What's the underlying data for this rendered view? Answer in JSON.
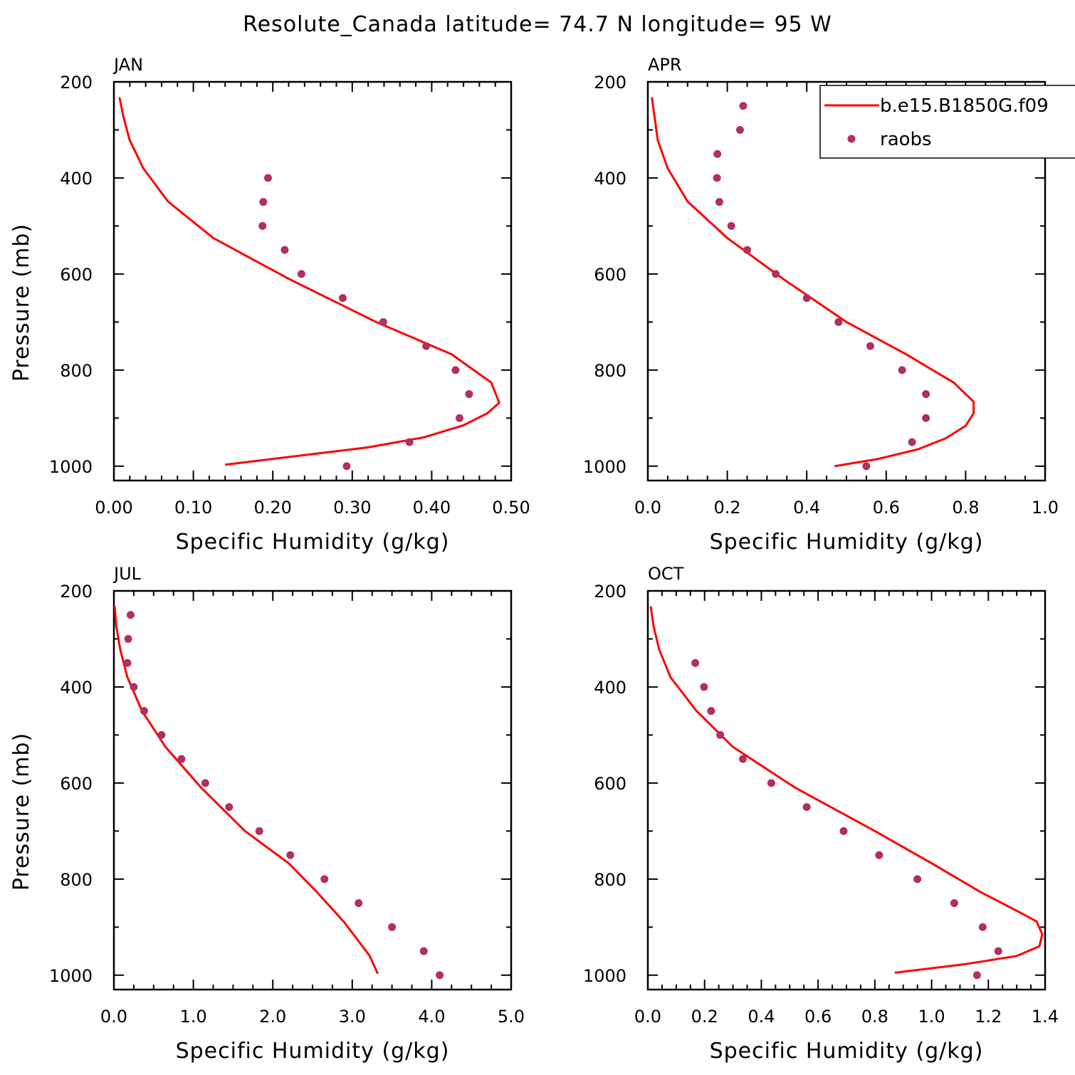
{
  "title": "Resolute_Canada  latitude= 74.7 N longitude= 95 W",
  "colors": {
    "model": "#ff0000",
    "raobs": "#b03060"
  },
  "legend": {
    "model": "b.e15.B1850G.f09",
    "raobs": "raobs"
  },
  "chart_data": [
    {
      "type": "line",
      "panel": "JAN",
      "xlabel": "Specific Humidity (g/kg)",
      "ylabel": "Pressure (mb)",
      "xlim": [
        0,
        0.5
      ],
      "ylim": [
        200,
        1030
      ],
      "xticks": [
        0,
        0.1,
        0.2,
        0.3,
        0.4,
        0.5
      ],
      "xtick_labels": [
        "0.00",
        "0.10",
        "0.20",
        "0.30",
        "0.40",
        "0.50"
      ],
      "xminor": [
        0.02,
        0.04,
        0.06,
        0.08,
        0.12,
        0.14,
        0.16,
        0.18,
        0.22,
        0.24,
        0.26,
        0.28,
        0.32,
        0.34,
        0.36,
        0.38,
        0.42,
        0.44,
        0.46,
        0.48
      ],
      "yticks": [
        200,
        400,
        600,
        800,
        1000
      ],
      "yminor": [
        300,
        500,
        700,
        900
      ],
      "series": [
        {
          "name": "b.e15.B1850G.f09",
          "kind": "line",
          "x": [
            0.14,
            0.32,
            0.39,
            0.44,
            0.47,
            0.485,
            0.475,
            0.425,
            0.33,
            0.22,
            0.125,
            0.068,
            0.037,
            0.02,
            0.012,
            0.007
          ],
          "y": [
            997,
            961,
            940,
            915,
            890,
            868,
            826,
            767,
            700,
            610,
            525,
            449,
            380,
            322,
            273,
            232
          ]
        },
        {
          "name": "raobs",
          "kind": "scatter",
          "x": [
            0.293,
            0.372,
            0.435,
            0.447,
            0.43,
            0.393,
            0.339,
            0.288,
            0.236,
            0.215,
            0.187,
            0.188,
            0.194
          ],
          "y": [
            1000,
            950,
            900,
            850,
            800,
            750,
            700,
            650,
            600,
            550,
            500,
            450,
            400
          ]
        }
      ]
    },
    {
      "type": "line",
      "panel": "APR",
      "xlabel": "Specific Humidity (g/kg)",
      "ylabel": "",
      "xlim": [
        0,
        1
      ],
      "ylim": [
        200,
        1030
      ],
      "xticks": [
        0,
        0.2,
        0.4,
        0.6,
        0.8,
        1.0
      ],
      "xtick_labels": [
        "0.0",
        "0.2",
        "0.4",
        "0.6",
        "0.8",
        "1.0"
      ],
      "xminor": [
        0.05,
        0.1,
        0.15,
        0.25,
        0.3,
        0.35,
        0.45,
        0.5,
        0.55,
        0.65,
        0.7,
        0.75,
        0.85,
        0.9,
        0.95
      ],
      "yticks": [
        200,
        400,
        600,
        800,
        1000
      ],
      "yminor": [
        300,
        500,
        700,
        900
      ],
      "series": [
        {
          "name": "b.e15.B1850G.f09",
          "kind": "line",
          "x": [
            0.47,
            0.58,
            0.68,
            0.75,
            0.8,
            0.82,
            0.82,
            0.77,
            0.65,
            0.5,
            0.34,
            0.2,
            0.1,
            0.05,
            0.025,
            0.01
          ],
          "y": [
            1000,
            985,
            965,
            942,
            916,
            890,
            866,
            826,
            767,
            700,
            610,
            525,
            449,
            380,
            322,
            232
          ]
        },
        {
          "name": "raobs",
          "kind": "scatter",
          "x": [
            0.55,
            0.665,
            0.7,
            0.7,
            0.64,
            0.56,
            0.48,
            0.4,
            0.322,
            0.25,
            0.21,
            0.18,
            0.174,
            0.175,
            0.232,
            0.24
          ],
          "y": [
            1000,
            950,
            900,
            850,
            800,
            750,
            700,
            650,
            600,
            550,
            500,
            450,
            400,
            350,
            300,
            250
          ]
        }
      ]
    },
    {
      "type": "line",
      "panel": "JUL",
      "xlabel": "Specific Humidity (g/kg)",
      "ylabel": "Pressure (mb)",
      "xlim": [
        0,
        5
      ],
      "ylim": [
        200,
        1030
      ],
      "xticks": [
        0,
        1,
        2,
        3,
        4,
        5
      ],
      "xtick_labels": [
        "0.0",
        "1.0",
        "2.0",
        "3.0",
        "4.0",
        "5.0"
      ],
      "xminor": [
        0.25,
        0.5,
        0.75,
        1.25,
        1.5,
        1.75,
        2.25,
        2.5,
        2.75,
        3.25,
        3.5,
        3.75,
        4.25,
        4.5,
        4.75
      ],
      "yticks": [
        200,
        400,
        600,
        800,
        1000
      ],
      "yminor": [
        300,
        500,
        700,
        900
      ],
      "series": [
        {
          "name": "b.e15.B1850G.f09",
          "kind": "line",
          "x": [
            3.32,
            3.22,
            2.9,
            2.55,
            2.2,
            1.65,
            1.1,
            0.65,
            0.35,
            0.17,
            0.08,
            0.03,
            0.01
          ],
          "y": [
            997,
            960,
            890,
            826,
            767,
            700,
            610,
            525,
            449,
            380,
            322,
            273,
            232
          ]
        },
        {
          "name": "raobs",
          "kind": "scatter",
          "x": [
            4.1,
            3.9,
            3.5,
            3.08,
            2.65,
            2.22,
            1.83,
            1.45,
            1.15,
            0.85,
            0.6,
            0.38,
            0.25,
            0.17,
            0.18,
            0.21
          ],
          "y": [
            1000,
            950,
            900,
            850,
            800,
            750,
            700,
            650,
            600,
            550,
            500,
            450,
            400,
            350,
            300,
            250
          ]
        }
      ]
    },
    {
      "type": "line",
      "panel": "OCT",
      "xlabel": "Specific Humidity (g/kg)",
      "ylabel": "",
      "xlim": [
        0,
        1.4
      ],
      "ylim": [
        200,
        1030
      ],
      "xticks": [
        0,
        0.2,
        0.4,
        0.6,
        0.8,
        1.0,
        1.2,
        1.4
      ],
      "xtick_labels": [
        "0.0",
        "0.2",
        "0.4",
        "0.6",
        "0.8",
        "1.0",
        "1.2",
        "1.4"
      ],
      "xminor": [
        0.05,
        0.1,
        0.15,
        0.25,
        0.3,
        0.35,
        0.45,
        0.5,
        0.55,
        0.65,
        0.7,
        0.75,
        0.85,
        0.9,
        0.95,
        1.05,
        1.1,
        1.15,
        1.25,
        1.3,
        1.35
      ],
      "yticks": [
        200,
        400,
        600,
        800,
        1000
      ],
      "yminor": [
        300,
        500,
        700,
        900
      ],
      "series": [
        {
          "name": "b.e15.B1850G.f09",
          "kind": "line",
          "x": [
            0.87,
            1.12,
            1.3,
            1.38,
            1.39,
            1.37,
            1.3,
            1.17,
            1.0,
            0.8,
            0.52,
            0.3,
            0.17,
            0.08,
            0.04,
            0.02,
            0.01
          ],
          "y": [
            995,
            977,
            960,
            940,
            915,
            888,
            866,
            826,
            767,
            700,
            610,
            525,
            449,
            380,
            322,
            273,
            232
          ]
        },
        {
          "name": "raobs",
          "kind": "scatter",
          "x": [
            1.16,
            1.235,
            1.18,
            1.08,
            0.95,
            0.815,
            0.69,
            0.56,
            0.435,
            0.335,
            0.255,
            0.223,
            0.198,
            0.167
          ],
          "y": [
            1000,
            950,
            900,
            850,
            800,
            750,
            700,
            650,
            600,
            550,
            500,
            450,
            400,
            350
          ]
        }
      ]
    }
  ]
}
